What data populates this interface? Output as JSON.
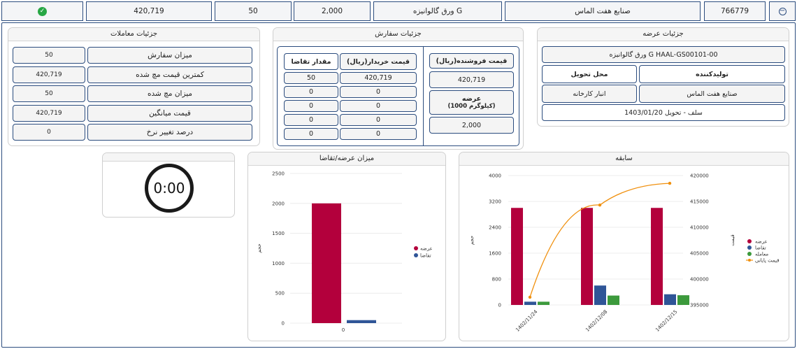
{
  "summary_row": {
    "collapse_icon": "minus-circle-icon",
    "id": "766779",
    "producer": "صنایع هفت الماس",
    "product": "ورق گالوانیزه G",
    "qty": "2,000",
    "deal_qty": "50",
    "price": "420,719",
    "status_icon": "check-circle-icon",
    "status_color": "#28a745"
  },
  "offer_details": {
    "title": "جزئیات عرضه",
    "product_code": "ورق گالوانیزه G HAAL-GS00101-00",
    "producer_label": "تولیدکننده",
    "delivery_label": "محل تحویل",
    "producer_value": "صنایع هفت الماس",
    "delivery_value": "انبار کارخانه",
    "settlement": "سلف - تحویل 1403/01/20"
  },
  "order_details": {
    "title": "جزئیات سفارش",
    "seller_price_label": "قیمت فروشنده(ریال)",
    "seller_price_value": "420,719",
    "supply_label": "عرضه",
    "supply_unit": "(1000 کیلوگرم)",
    "supply_value": "2,000",
    "buyer_price_label": "قیمت خریدار(ریال)",
    "demand_qty_label": "مقدار تقاضا",
    "rows": [
      {
        "price": "420,719",
        "qty": "50"
      },
      {
        "price": "0",
        "qty": "0"
      },
      {
        "price": "0",
        "qty": "0"
      },
      {
        "price": "0",
        "qty": "0"
      },
      {
        "price": "0",
        "qty": "0"
      }
    ]
  },
  "trade_details": {
    "title": "جزئیات معاملات",
    "rows": [
      {
        "label": "میزان سفارش",
        "value": "50"
      },
      {
        "label": "کمترین قیمت مچ شده",
        "value": "420,719"
      },
      {
        "label": "میزان مچ شده",
        "value": "50"
      },
      {
        "label": "قیمت میانگین",
        "value": "420,719"
      },
      {
        "label": "درصد تغییر نرخ",
        "value": "0"
      }
    ]
  },
  "timer": {
    "value": "0:00"
  },
  "supply_demand_chart": {
    "title": "میزان عرضه/تقاضا"
  },
  "history_chart": {
    "title": "سابقه"
  },
  "chart_data": [
    {
      "type": "bar",
      "title": "میزان عرضه/تقاضا",
      "categories": [
        "0"
      ],
      "ylabel": "حجم",
      "ylim": [
        0,
        2500
      ],
      "yticks": [
        "2500",
        "2000",
        "1500",
        "1000",
        "500",
        "0"
      ],
      "legend_position": "right",
      "series": [
        {
          "name": "عرضه",
          "values": [
            2000
          ],
          "color": "#b3003c"
        },
        {
          "name": "تقاضا",
          "values": [
            50
          ],
          "color": "#2f5597"
        }
      ]
    },
    {
      "type": "bar",
      "title": "سابقه",
      "categories": [
        "1402/11/24",
        "1402/12/08",
        "1402/12/15"
      ],
      "ylabel": "حجم",
      "y2label": "قیمت",
      "ylim": [
        0,
        4000
      ],
      "y2lim": [
        395000,
        420000
      ],
      "yticks": [
        "4000",
        "3200",
        "2400",
        "1600",
        "800",
        "0"
      ],
      "y2ticks": [
        "420000",
        "415000",
        "410000",
        "405000",
        "400000",
        "395000"
      ],
      "legend_position": "right",
      "series": [
        {
          "name": "عرضه",
          "values": [
            3000,
            3000,
            3000
          ],
          "color": "#b3003c"
        },
        {
          "name": "تقاضا",
          "values": [
            100,
            600,
            330
          ],
          "color": "#2f5597"
        },
        {
          "name": "معامله",
          "values": [
            100,
            290,
            300
          ],
          "color": "#3c9a3c"
        }
      ],
      "line_series": {
        "name": "قیمت پایانی",
        "values": [
          396500,
          414300,
          418500
        ],
        "color": "#f0900e"
      }
    }
  ]
}
